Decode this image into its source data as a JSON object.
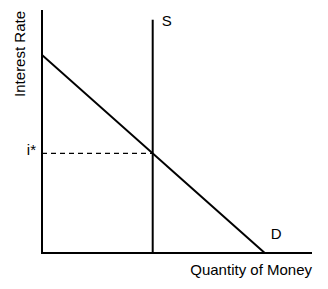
{
  "chart_data": {
    "type": "line",
    "x_label": "Quantity of Money",
    "y_label": "Interest Rate",
    "xlim": [
      0,
      10
    ],
    "ylim": [
      0,
      10
    ],
    "xticks": [],
    "yticks": [],
    "tick_labels": false,
    "grid": false,
    "series": [
      {
        "name": "D",
        "color": "#000000",
        "x": [
          0,
          8.25
        ],
        "values": [
          8.15,
          0
        ]
      },
      {
        "name": "S",
        "color": "#000000",
        "x": [
          4.1,
          4.1
        ],
        "values": [
          0,
          9.6
        ]
      }
    ],
    "annotations": [
      {
        "label": "i*",
        "x": 4.1,
        "y": 4.1,
        "line_style": "dashed"
      }
    ]
  }
}
